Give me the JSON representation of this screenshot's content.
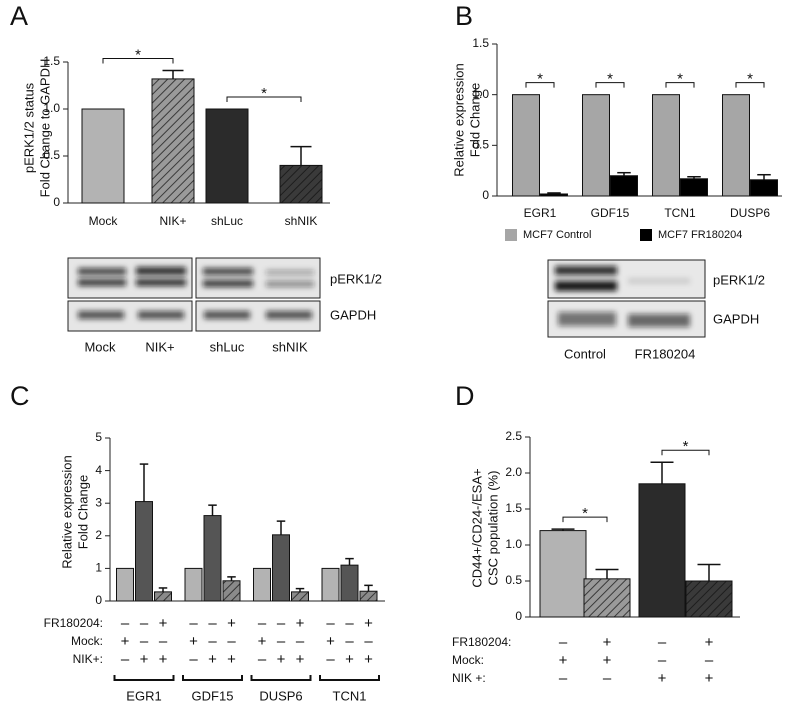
{
  "chart_data": [
    {
      "type": "bar",
      "label": "A",
      "y_label": [
        "pERK1/2 status",
        "Fold Change to GAPDH"
      ],
      "categories": [
        "Mock",
        "NIK+",
        "shLuc",
        "shNIK"
      ],
      "values": [
        1.0,
        1.32,
        1.0,
        0.4
      ],
      "errors": [
        null,
        0.09,
        null,
        0.2
      ],
      "colors": [
        "#b3b3b3",
        "#9a9a9a",
        "#2b2b2b",
        "#3a3a3a"
      ],
      "hatched": [
        false,
        true,
        false,
        true
      ],
      "ylim": [
        0,
        1.5
      ],
      "yticks": [
        0,
        0.5,
        {
          "value": 1,
          "label": "1.0"
        },
        1.5
      ],
      "annotations": [
        {
          "text": "*",
          "bars": [
            [
              0,
              0
            ],
            [
              0,
              1
            ]
          ]
        },
        {
          "text": "*",
          "bars": [
            [
              0,
              2
            ],
            [
              0,
              3
            ]
          ]
        }
      ],
      "blot": {
        "rows": [
          "pERK1/2",
          "GAPDH"
        ],
        "lanes": [
          "Mock",
          "NIK+",
          "shLuc",
          "shNIK"
        ]
      }
    },
    {
      "type": "bar",
      "label": "B",
      "y_label": [
        "Relative expression",
        "Fold Change"
      ],
      "categories": [
        "EGR1",
        "GDF15",
        "TCN1",
        "DUSP6"
      ],
      "series": [
        {
          "name": "MCF7 Control",
          "color": "#a6a6a6",
          "values": [
            1,
            1,
            1,
            1
          ],
          "errors": [
            null,
            null,
            null,
            null
          ]
        },
        {
          "name": "MCF7 FR180204",
          "color": "#000000",
          "values": [
            0.02,
            0.2,
            0.17,
            0.16
          ],
          "errors": [
            0.01,
            0.03,
            0.02,
            0.05
          ]
        }
      ],
      "ylim": [
        0,
        1.5
      ],
      "yticks": [
        0,
        0.5,
        {
          "value": 1,
          "label": "1.0"
        },
        1.5
      ],
      "annotations": [
        {
          "text": "*",
          "bars": [
            [
              0,
              0
            ],
            [
              1,
              0
            ]
          ]
        },
        {
          "text": "*",
          "bars": [
            [
              0,
              1
            ],
            [
              1,
              1
            ]
          ]
        },
        {
          "text": "*",
          "bars": [
            [
              0,
              2
            ],
            [
              1,
              2
            ]
          ]
        },
        {
          "text": "*",
          "bars": [
            [
              0,
              3
            ],
            [
              1,
              3
            ]
          ]
        }
      ],
      "blot": {
        "rows": [
          "pERK1/2",
          "GAPDH"
        ],
        "lanes": [
          "Control",
          "FR180204"
        ]
      }
    },
    {
      "type": "bar",
      "label": "C",
      "y_label": [
        "Relative expression",
        "Fold Change"
      ],
      "categories": [
        "EGR1",
        "GDF15",
        "DUSP6",
        "TCN1"
      ],
      "series": [
        {
          "color": "#b3b3b3",
          "hatched": false,
          "values": [
            1,
            1,
            1,
            1
          ],
          "errors": [
            null,
            null,
            null,
            null
          ]
        },
        {
          "color": "#555555",
          "hatched": false,
          "values": [
            3.05,
            2.62,
            2.03,
            1.1
          ],
          "errors": [
            1.15,
            0.32,
            0.42,
            0.2
          ]
        },
        {
          "color": "#8a8a8a",
          "hatched": true,
          "values": [
            0.28,
            0.62,
            0.28,
            0.3
          ],
          "errors": [
            0.12,
            0.12,
            0.1,
            0.18
          ]
        }
      ],
      "ylim": [
        0,
        5
      ],
      "yticks": [
        0,
        1,
        2,
        3,
        4,
        5
      ],
      "conditions": [
        {
          "label": "FR180204:",
          "signs": [
            "–",
            "–",
            "+",
            "–",
            "–",
            "+",
            "–",
            "–",
            "+",
            "–",
            "–",
            "+"
          ]
        },
        {
          "label": "Mock:",
          "signs": [
            "+",
            "–",
            "–",
            "+",
            "–",
            "–",
            "+",
            "–",
            "–",
            "+",
            "–",
            "–"
          ]
        },
        {
          "label": "NIK+:",
          "signs": [
            "–",
            "+",
            "+",
            "–",
            "+",
            "+",
            "–",
            "+",
            "+",
            "–",
            "+",
            "+"
          ]
        }
      ]
    },
    {
      "type": "bar",
      "label": "D",
      "y_label": [
        "CD44+/CD24-/ESA+",
        "CSC population (%)"
      ],
      "categories": [
        null,
        null,
        null,
        null
      ],
      "values": [
        1.2,
        0.53,
        1.85,
        0.5
      ],
      "errors": [
        0.02,
        0.13,
        0.3,
        0.23
      ],
      "colors": [
        "#b3b3b3",
        "#9a9a9a",
        "#2b2b2b",
        "#3a3a3a"
      ],
      "hatched": [
        false,
        true,
        false,
        true
      ],
      "ylim": [
        0,
        2.5
      ],
      "yticks": [
        0,
        0.5,
        {
          "value": 1,
          "label": "1.0"
        },
        1.5,
        {
          "value": 2,
          "label": "2.0"
        },
        2.5
      ],
      "annotations": [
        {
          "text": "*",
          "bars": [
            [
              0,
              0
            ],
            [
              0,
              1
            ]
          ]
        },
        {
          "text": "*",
          "bars": [
            [
              0,
              2
            ],
            [
              0,
              3
            ]
          ]
        }
      ],
      "conditions": [
        {
          "label": "FR180204:",
          "signs": [
            "–",
            "+",
            "–",
            "+"
          ]
        },
        {
          "label": "Mock:",
          "signs": [
            "+",
            "+",
            "–",
            "–"
          ]
        },
        {
          "label": "NIK +:",
          "signs": [
            "–",
            "–",
            "+",
            "+"
          ]
        }
      ]
    }
  ]
}
